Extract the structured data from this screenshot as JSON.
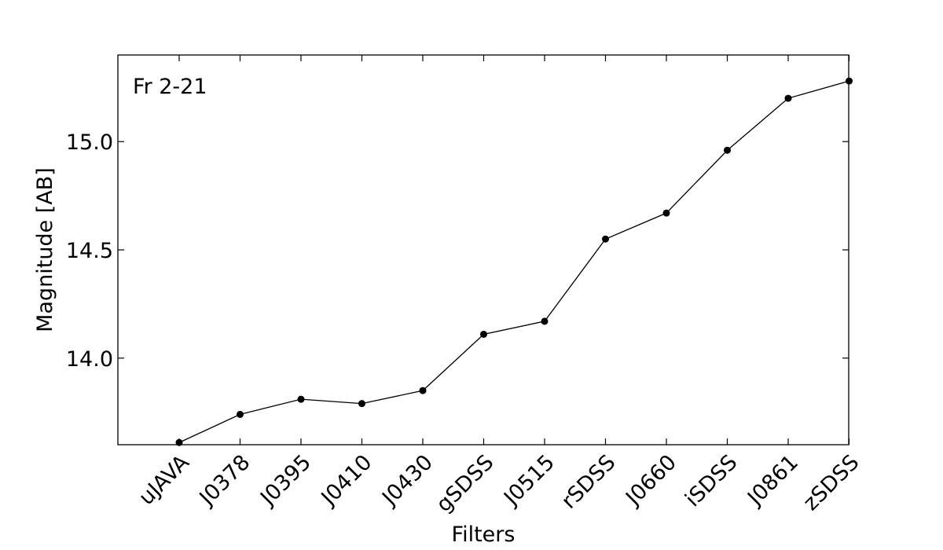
{
  "chart_data": {
    "type": "line",
    "title": "",
    "annotation": "Fr 2-21",
    "xlabel": "Filters",
    "ylabel": "Magnitude [AB]",
    "categories": [
      "uJAVA",
      "J0378",
      "J0395",
      "J0410",
      "J0430",
      "gSDSS",
      "J0515",
      "rSDSS",
      "J0660",
      "iSDSS",
      "J0861",
      "zSDSS"
    ],
    "series": [
      {
        "values": [
          13.61,
          13.74,
          13.81,
          13.79,
          13.85,
          14.11,
          14.17,
          14.55,
          14.67,
          14.96,
          15.2,
          15.28
        ]
      }
    ],
    "ylim": [
      13.6,
      15.4
    ],
    "yticks": [
      "14.0",
      "14.5",
      "15.0"
    ],
    "grid": false,
    "legend": "none",
    "line_color": "#000000",
    "marker_color": "#000000"
  }
}
